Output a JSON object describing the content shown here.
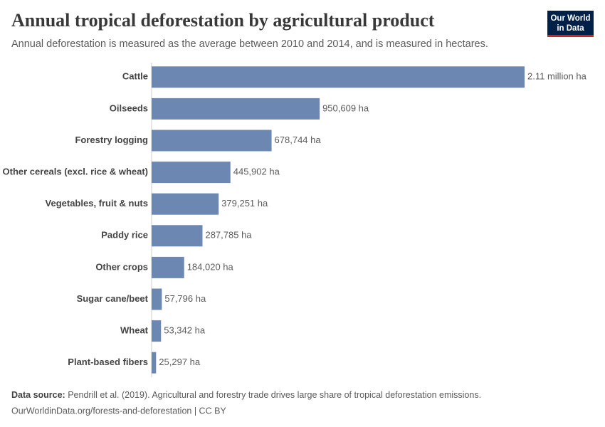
{
  "logo": [
    "Our World",
    "in Data"
  ],
  "chart_data": {
    "type": "bar",
    "title": "Annual tropical deforestation by agricultural product",
    "subtitle": "Annual deforestation is measured as the average between 2010 and 2014, and is measured in hectares.",
    "categories": [
      "Cattle",
      "Oilseeds",
      "Forestry logging",
      "Other cereals (excl. rice & wheat)",
      "Vegetables, fruit & nuts",
      "Paddy rice",
      "Other crops",
      "Sugar cane/beet",
      "Wheat",
      "Plant-based fibers"
    ],
    "values": [
      2110000,
      950609,
      678744,
      445902,
      379251,
      287785,
      184020,
      57796,
      53342,
      25297
    ],
    "value_labels": [
      "2.11 million ha",
      "950,609 ha",
      "678,744 ha",
      "445,902 ha",
      "379,251 ha",
      "287,785 ha",
      "184,020 ha",
      "57,796 ha",
      "53,342 ha",
      "25,297 ha"
    ],
    "color": "#6d87b3",
    "source_label": "Data source:",
    "source": "Pendrill et al. (2019). Agricultural and forestry trade drives large share of tropical deforestation emissions.",
    "footer": "OurWorldinData.org/forests-and-deforestation | CC BY"
  }
}
